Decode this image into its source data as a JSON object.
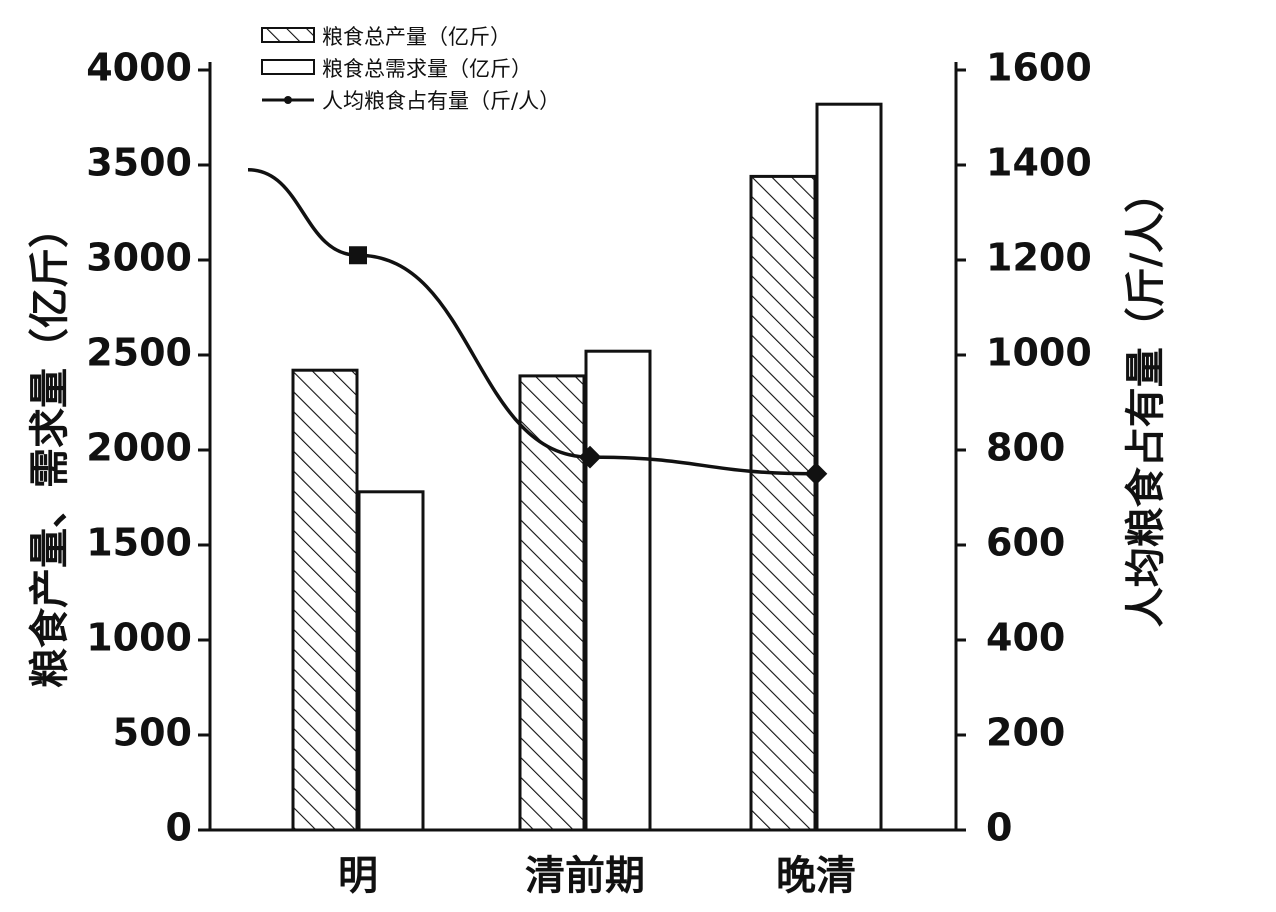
{
  "chart_data": {
    "type": "bar",
    "categories": [
      "明",
      "清前期",
      "晚清"
    ],
    "series": [
      {
        "name": "粮食总产量（亿斤）",
        "kind": "bar",
        "pattern": "hatched",
        "axis": "left",
        "values": [
          2420,
          2390,
          3440
        ]
      },
      {
        "name": "粮食总需求量（亿斤）",
        "kind": "bar",
        "pattern": "plain",
        "axis": "left",
        "values": [
          1780,
          2520,
          3820
        ]
      },
      {
        "name": "人均粮食占有量（斤/人）",
        "kind": "line",
        "axis": "right",
        "values": [
          1210,
          785,
          750
        ],
        "line_start_value": 1390
      }
    ],
    "ylabel": "粮食产量、需求量（亿斤）",
    "y2label": "人均粮食占有量（斤/人）",
    "ylim": [
      0,
      4000
    ],
    "y2lim": [
      0,
      1600
    ],
    "yticks": [
      "0",
      "500",
      "1000",
      "1500",
      "2000",
      "2500",
      "3000",
      "3500",
      "4000"
    ],
    "y2ticks": [
      "0",
      "200",
      "400",
      "600",
      "800",
      "1000",
      "1200",
      "1400",
      "1600"
    ],
    "grid": false,
    "legend_position": "top-left"
  }
}
